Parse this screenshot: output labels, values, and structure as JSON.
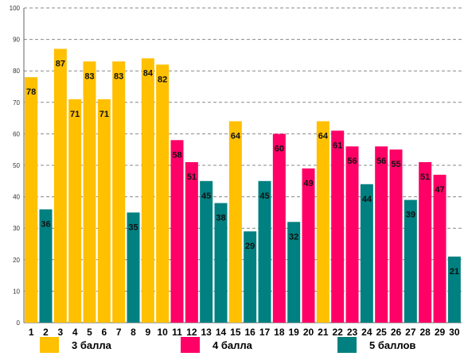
{
  "chart_data": {
    "type": "bar",
    "title": "",
    "xlabel": "",
    "ylabel": "",
    "ylim": [
      0,
      100
    ],
    "yticks": [
      0,
      10,
      20,
      30,
      40,
      50,
      60,
      70,
      80,
      90,
      100
    ],
    "grid": "horizontal-dashed",
    "legend_position": "bottom",
    "categories": [
      "1",
      "2",
      "3",
      "4",
      "5",
      "6",
      "7",
      "8",
      "9",
      "10",
      "11",
      "12",
      "13",
      "14",
      "15",
      "16",
      "17",
      "18",
      "19",
      "20",
      "21",
      "22",
      "23",
      "24",
      "25",
      "26",
      "27",
      "28",
      "29",
      "30"
    ],
    "values": [
      78,
      36,
      87,
      71,
      83,
      71,
      83,
      35,
      84,
      82,
      58,
      51,
      45,
      38,
      64,
      29,
      45,
      60,
      32,
      49,
      64,
      61,
      56,
      44,
      56,
      55,
      39,
      51,
      47,
      21
    ],
    "groups": [
      0,
      2,
      0,
      0,
      0,
      0,
      0,
      2,
      0,
      0,
      1,
      1,
      2,
      2,
      0,
      2,
      2,
      1,
      2,
      1,
      0,
      1,
      1,
      2,
      1,
      1,
      2,
      1,
      1,
      2
    ],
    "legend": [
      {
        "label": "3 балла",
        "color": "#FFC000"
      },
      {
        "label": "4 балла",
        "color": "#FF0066"
      },
      {
        "label": "5 баллов",
        "color": "#008080"
      }
    ]
  }
}
